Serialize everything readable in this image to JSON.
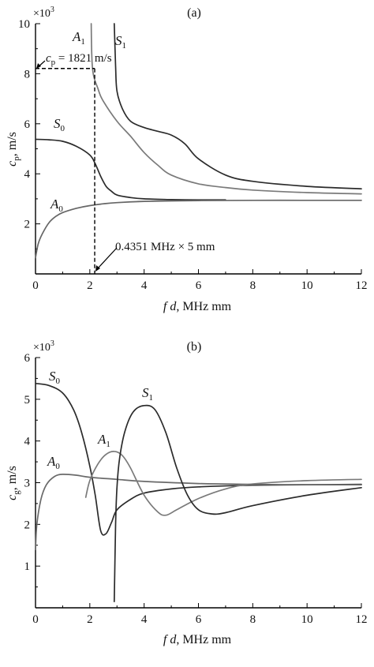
{
  "chart_data": [
    {
      "type": "line",
      "panel_label": "(a)",
      "ylabel": "c",
      "ylabel_sub": "p",
      "ylabel_unit": ", m/s",
      "xlabel_var": "f d",
      "xlabel_unit": ", MHz mm",
      "y_multiplier": "×10",
      "y_multiplier_exp": "3",
      "xlim": [
        0,
        12
      ],
      "ylim": [
        0,
        10
      ],
      "xticks": [
        "0",
        "2",
        "4",
        "6",
        "8",
        "10",
        "12"
      ],
      "yticks": [
        "2",
        "4",
        "6",
        "8",
        "10"
      ],
      "grid": false,
      "series": [
        {
          "name": "S",
          "sub": "0",
          "color": "#2b2b2b",
          "x": [
            0,
            0.5,
            1.0,
            1.5,
            2.0,
            2.2,
            2.4,
            2.6,
            2.8,
            3.0,
            3.5,
            4.0,
            5.0,
            6.0,
            7.0
          ],
          "y": [
            5.38,
            5.36,
            5.3,
            5.1,
            4.75,
            4.4,
            3.9,
            3.5,
            3.3,
            3.15,
            3.05,
            3.0,
            2.97,
            2.96,
            2.96
          ]
        },
        {
          "name": "A",
          "sub": "0",
          "color": "#666666",
          "x": [
            0,
            0.1,
            0.25,
            0.5,
            0.75,
            1.0,
            1.5,
            2.0,
            2.5,
            3.0,
            4.0,
            6.0,
            8.0,
            10.0,
            12.0
          ],
          "y": [
            0.65,
            1.2,
            1.6,
            2.05,
            2.3,
            2.45,
            2.62,
            2.73,
            2.8,
            2.85,
            2.9,
            2.93,
            2.94,
            2.94,
            2.94
          ]
        },
        {
          "name": "A",
          "sub": "1",
          "color": "#7a7a7a",
          "x": [
            2.05,
            2.1,
            2.3,
            2.5,
            3.0,
            3.5,
            4.0,
            4.5,
            5.0,
            6.0,
            7.0,
            8.0,
            10.0,
            12.0
          ],
          "y": [
            10.0,
            8.2,
            7.4,
            6.9,
            6.1,
            5.5,
            4.85,
            4.35,
            3.95,
            3.6,
            3.45,
            3.35,
            3.25,
            3.2
          ]
        },
        {
          "name": "S",
          "sub": "1",
          "color": "#2b2b2b",
          "x": [
            2.9,
            2.95,
            3.0,
            3.2,
            3.5,
            4.0,
            4.5,
            5.0,
            5.5,
            6.0,
            7.0,
            8.0,
            10.0,
            12.0
          ],
          "y": [
            10.0,
            8.3,
            7.3,
            6.6,
            6.1,
            5.85,
            5.7,
            5.55,
            5.2,
            4.6,
            3.95,
            3.7,
            3.5,
            3.4
          ]
        }
      ],
      "annotations": {
        "cp_text": " = 1821 m/s",
        "cp_var": "c",
        "cp_sub": "p",
        "cp_y": 8.21,
        "fd_text": "0.4351 MHz × 5 mm",
        "fd_x": 2.18
      }
    },
    {
      "type": "line",
      "panel_label": "(b)",
      "ylabel": "c",
      "ylabel_sub": "g",
      "ylabel_unit": ", m/s",
      "xlabel_var": "f d",
      "xlabel_unit": ", MHz mm",
      "y_multiplier": "×10",
      "y_multiplier_exp": "3",
      "xlim": [
        0,
        12
      ],
      "ylim": [
        0,
        6
      ],
      "xticks": [
        "0",
        "2",
        "4",
        "6",
        "8",
        "10",
        "12"
      ],
      "yticks": [
        "1",
        "2",
        "3",
        "4",
        "5",
        "6"
      ],
      "grid": false,
      "series": [
        {
          "name": "S",
          "sub": "0",
          "color": "#2b2b2b",
          "x": [
            0,
            0.5,
            1.0,
            1.4,
            1.7,
            2.0,
            2.2,
            2.4,
            2.6,
            2.8,
            3.0,
            3.5,
            4.0,
            5.0,
            6.0,
            8.0,
            10.0,
            12.0
          ],
          "y": [
            5.38,
            5.33,
            5.15,
            4.75,
            4.2,
            3.4,
            2.7,
            1.85,
            1.78,
            2.05,
            2.35,
            2.6,
            2.75,
            2.85,
            2.9,
            2.94,
            2.95,
            2.96
          ]
        },
        {
          "name": "A",
          "sub": "0",
          "color": "#6a6a6a",
          "x": [
            0,
            0.05,
            0.2,
            0.4,
            0.7,
            1.0,
            1.5,
            2.0,
            3.0,
            4.0,
            6.0,
            8.0,
            10.0,
            12.0
          ],
          "y": [
            1.4,
            2.0,
            2.6,
            2.95,
            3.15,
            3.2,
            3.18,
            3.13,
            3.08,
            3.03,
            2.98,
            2.96,
            2.95,
            2.95
          ]
        },
        {
          "name": "A",
          "sub": "1",
          "color": "#7a7a7a",
          "x": [
            1.85,
            2.0,
            2.3,
            2.6,
            2.9,
            3.2,
            3.5,
            4.0,
            4.5,
            4.8,
            5.2,
            6.0,
            7.0,
            8.0,
            10.0,
            12.0
          ],
          "y": [
            2.65,
            3.05,
            3.45,
            3.68,
            3.75,
            3.65,
            3.35,
            2.7,
            2.3,
            2.22,
            2.35,
            2.62,
            2.85,
            2.97,
            3.05,
            3.08
          ]
        },
        {
          "name": "S",
          "sub": "1",
          "color": "#2b2b2b",
          "x": [
            2.9,
            2.95,
            3.0,
            3.1,
            3.3,
            3.6,
            4.0,
            4.4,
            4.8,
            5.2,
            5.6,
            6.0,
            6.5,
            7.0,
            8.0,
            10.0,
            12.0
          ],
          "y": [
            0.15,
            2.0,
            2.9,
            3.6,
            4.25,
            4.7,
            4.85,
            4.75,
            4.2,
            3.35,
            2.7,
            2.35,
            2.25,
            2.28,
            2.45,
            2.7,
            2.88
          ]
        }
      ]
    }
  ]
}
